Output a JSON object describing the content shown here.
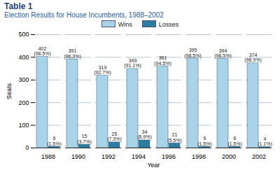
{
  "chart_data": {
    "type": "bar",
    "title": "Table 1",
    "subtitle": "Election Results for House Incumbents, 1988–2002",
    "categories": [
      "1988",
      "1990",
      "1992",
      "1994",
      "1996",
      "1998",
      "2000",
      "2002"
    ],
    "x_label": "Year",
    "y_label": "Seats",
    "series": [
      {
        "name": "Wins",
        "color": "#a9d3e8",
        "values": [
          402,
          391,
          319,
          349,
          361,
          395,
          394,
          374
        ],
        "value_labels": [
          "402\n(98.5%)",
          "391\n(96.3%)",
          "319\n(92.7%)",
          "349\n(91.1%)",
          "361\n(94.5%)",
          "395\n(98.5%)",
          "394\n(98.5%)",
          "374\n(98.9%)"
        ]
      },
      {
        "name": "Losses",
        "color": "#2b7ea1",
        "values": [
          6,
          15,
          25,
          34,
          21,
          6,
          6,
          4
        ],
        "value_labels": [
          "6\n(1.5%)",
          "15\n(3.7%)",
          "25\n(7.3%)",
          "34\n(8.9%)",
          "21\n(5.5%)",
          "6\n(1.5%)",
          "6\n(1.5%)",
          "4\n(1.1%)"
        ]
      }
    ],
    "ylim": [
      0,
      500
    ],
    "yticks": [
      0,
      100,
      200,
      300,
      400,
      500
    ],
    "grid": true,
    "legend": "top",
    "data_labels": true
  }
}
